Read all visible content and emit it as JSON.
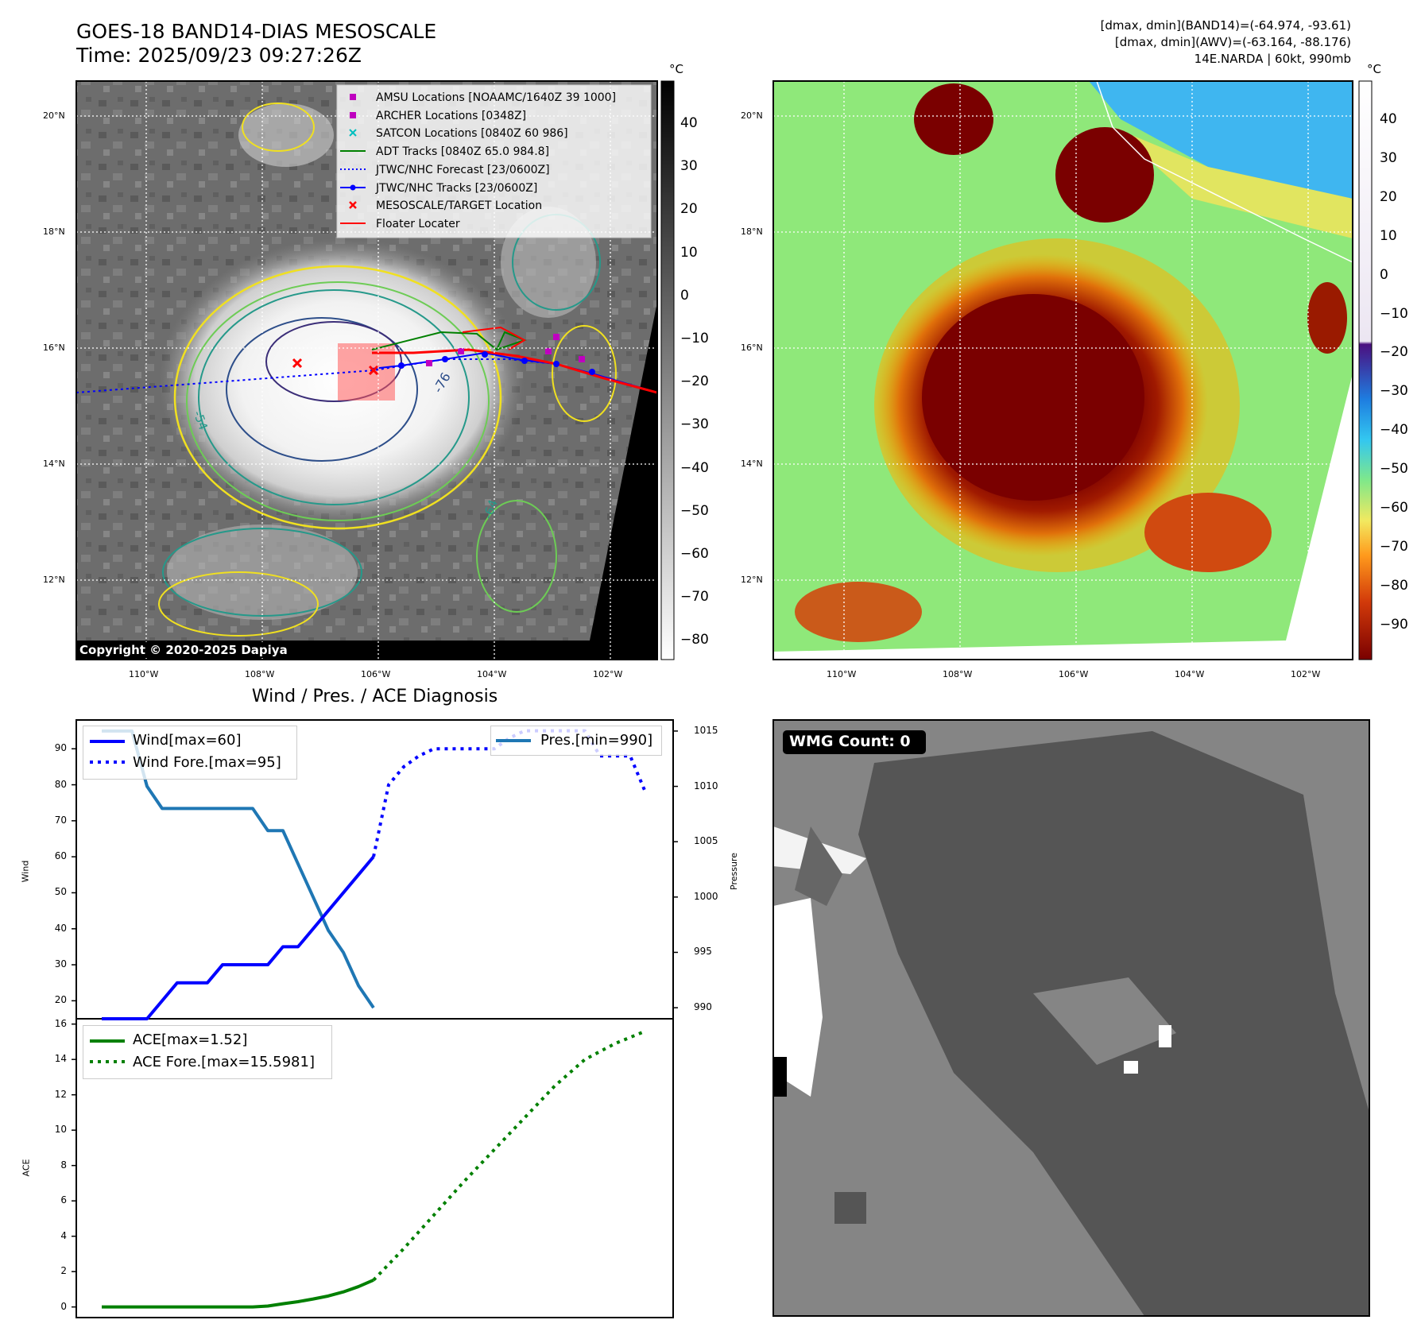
{
  "header": {
    "title_line1": "GOES-18 BAND14-DIAS MESOSCALE",
    "title_line2": "Time: 2025/09/23 09:27:26Z",
    "info_line1": "[dmax, dmin](BAND14)=(-64.974, -93.61)",
    "info_line2": "[dmax, dmin](AWV)=(-63.164, -88.176)",
    "info_line3": "14E.NARDA | 60kt, 990mb"
  },
  "map_left": {
    "lat_labels": [
      "20°N",
      "18°N",
      "16°N",
      "14°N",
      "12°N"
    ],
    "lon_labels": [
      "110°W",
      "108°W",
      "106°W",
      "104°W",
      "102°W"
    ],
    "copyright": "Copyright © 2020-2025 Dapiya",
    "legend": [
      {
        "label": "AMSU Locations [NOAAMC/1640Z 39 1000]",
        "color": "#bf00bf",
        "marker": "square"
      },
      {
        "label": "ARCHER Locations [0348Z]",
        "color": "#bf00bf",
        "marker": "square"
      },
      {
        "label": "SATCON Locations [0840Z 60 986]",
        "color": "#00bfbf",
        "marker": "x"
      },
      {
        "label": "ADT Tracks [0840Z 65.0 984.8]",
        "color": "#008000",
        "marker": "line"
      },
      {
        "label": "JTWC/NHC Forecast [23/0600Z]",
        "color": "#0000ff",
        "marker": "dotted"
      },
      {
        "label": "JTWC/NHC Tracks [23/0600Z]",
        "color": "#0000ff",
        "marker": "line-dot"
      },
      {
        "label": "MESOSCALE/TARGET Location",
        "color": "#ff0000",
        "marker": "x"
      },
      {
        "label": "Floater Locater",
        "color": "#ff0000",
        "marker": "line"
      }
    ],
    "contour_labels": [
      "-76",
      "-64",
      "-54"
    ],
    "colorbar": {
      "unit": "°C",
      "ticks": [
        "40",
        "30",
        "20",
        "10",
        "0",
        "−10",
        "−20",
        "−30",
        "−40",
        "−50",
        "−60",
        "−70",
        "−80"
      ]
    }
  },
  "map_right": {
    "lat_labels": [
      "20°N",
      "18°N",
      "16°N",
      "14°N",
      "12°N"
    ],
    "lon_labels": [
      "110°W",
      "108°W",
      "106°W",
      "104°W",
      "102°W"
    ],
    "colorbar": {
      "unit": "°C",
      "ticks": [
        "40",
        "30",
        "20",
        "10",
        "0",
        "−10",
        "−20",
        "−30",
        "−40",
        "−50",
        "−60",
        "−70",
        "−80",
        "−90"
      ]
    }
  },
  "panel_wmg": {
    "badge": "WMG Count: 0"
  },
  "chart_data": [
    {
      "type": "line",
      "title": "Wind / Pres. / ACE Diagnosis",
      "ylabel": "Wind",
      "y2label": "Pressure",
      "ylim": [
        15,
        98
      ],
      "y2lim": [
        989,
        1016
      ],
      "yticks": [
        20,
        30,
        40,
        50,
        60,
        70,
        80,
        90
      ],
      "y2ticks": [
        990,
        995,
        1000,
        1005,
        1010,
        1015
      ],
      "series": [
        {
          "name": "Wind[max=60]",
          "style": "solid",
          "color": "#0000ff",
          "axis": "left",
          "x": [
            0,
            1,
            2,
            3,
            4,
            5,
            6,
            7,
            8,
            9,
            10,
            11,
            12,
            13,
            14,
            15,
            16,
            17,
            18
          ],
          "values": [
            15,
            15,
            15,
            15,
            20,
            25,
            25,
            25,
            30,
            30,
            30,
            30,
            35,
            35,
            40,
            45,
            50,
            55,
            60
          ]
        },
        {
          "name": "Wind Fore.[max=95]",
          "style": "dotted",
          "color": "#0000ff",
          "axis": "left",
          "x": [
            18,
            19,
            20,
            21,
            22,
            23,
            24,
            25,
            26,
            27,
            28,
            29,
            30,
            31,
            32,
            33,
            34,
            35,
            36
          ],
          "values": [
            60,
            80,
            85,
            88,
            90,
            90,
            90,
            90,
            90,
            93,
            95,
            95,
            95,
            95,
            95,
            88,
            88,
            88,
            78
          ]
        },
        {
          "name": "Pres.[min=990]",
          "style": "solid",
          "color": "#1f77b4",
          "axis": "right",
          "x": [
            0,
            1,
            2,
            3,
            4,
            5,
            6,
            7,
            8,
            9,
            10,
            11,
            12,
            13,
            14,
            15,
            16,
            17,
            18
          ],
          "values": [
            1015,
            1015,
            1015,
            1010,
            1008,
            1008,
            1008,
            1008,
            1008,
            1008,
            1008,
            1006,
            1006,
            1003,
            1000,
            997,
            995,
            992,
            990
          ]
        }
      ]
    },
    {
      "type": "line",
      "ylabel": "ACE",
      "ylim": [
        -0.6,
        16.3
      ],
      "yticks": [
        0,
        2,
        4,
        6,
        8,
        10,
        12,
        14,
        16
      ],
      "series": [
        {
          "name": "ACE[max=1.52]",
          "style": "solid",
          "color": "#008000",
          "x": [
            0,
            2,
            4,
            6,
            8,
            10,
            11,
            12,
            13,
            14,
            15,
            16,
            17,
            18
          ],
          "values": [
            0,
            0,
            0,
            0,
            0,
            0,
            0.05,
            0.18,
            0.3,
            0.45,
            0.62,
            0.85,
            1.15,
            1.52
          ]
        },
        {
          "name": "ACE Fore.[max=15.5981]",
          "style": "dotted",
          "color": "#008000",
          "x": [
            18,
            20,
            22,
            24,
            26,
            28,
            30,
            32,
            34,
            36
          ],
          "values": [
            1.52,
            3.3,
            5.2,
            7.1,
            8.9,
            10.7,
            12.5,
            14.0,
            14.9,
            15.6
          ]
        }
      ]
    }
  ]
}
